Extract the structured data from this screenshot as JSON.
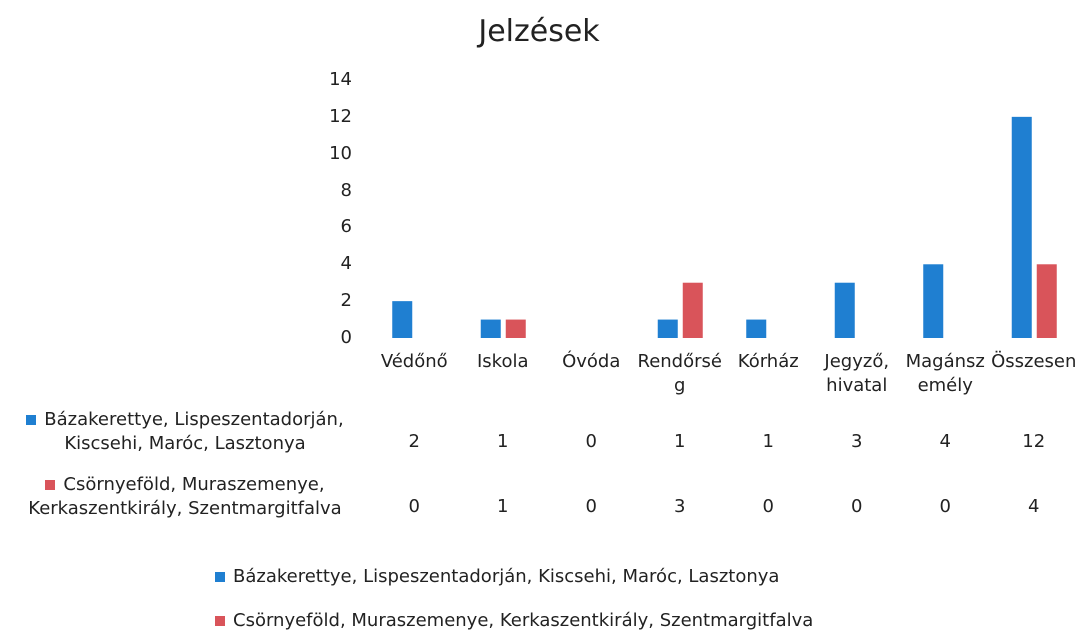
{
  "chart_data": {
    "type": "bar",
    "title": "Jelzések",
    "categories": [
      "Védőnő",
      "Iskola",
      "Óvóda",
      "Rendőrség",
      "Kórház",
      "Jegyző, hivatal",
      "Magánszemély",
      "Összesen"
    ],
    "series": [
      {
        "name": "Bázakerettye, Lispeszentadorján, Kiscsehi, Maróc, Lasztonya",
        "color": "#1f7fd1",
        "values": [
          2,
          1,
          0,
          1,
          1,
          3,
          4,
          12
        ]
      },
      {
        "name": "Csörnyeföld, Muraszemenye, Kerkaszentkirály, Szentmargitfalva",
        "color": "#d9545a",
        "values": [
          0,
          1,
          0,
          3,
          0,
          0,
          0,
          4
        ]
      }
    ],
    "ylim": [
      0,
      14
    ],
    "yticks": [
      0,
      2,
      4,
      6,
      8,
      10,
      12,
      14
    ],
    "grid": false
  }
}
